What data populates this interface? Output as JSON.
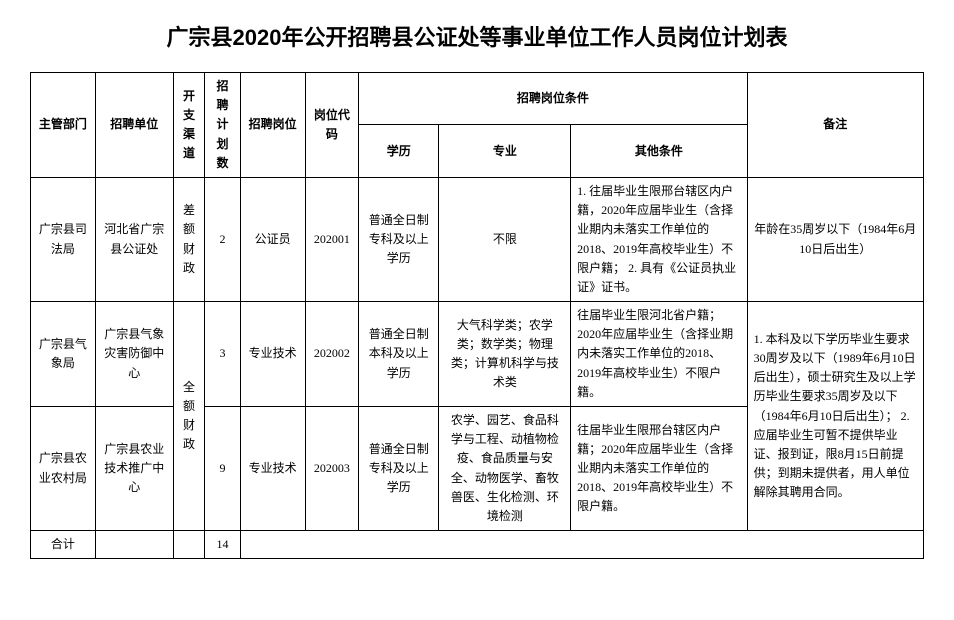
{
  "title": "广宗县2020年公开招聘县公证处等事业单位工作人员岗位计划表",
  "headers": {
    "dept": "主管部门",
    "unit": "招聘单位",
    "channel": "开支渠道",
    "plan": "招聘计划数",
    "post": "招聘岗位",
    "code": "岗位代码",
    "cond": "招聘岗位条件",
    "edu": "学历",
    "major": "专业",
    "other": "其他条件",
    "note": "备注"
  },
  "rows": [
    {
      "dept": "广宗县司法局",
      "unit": "河北省广宗县公证处",
      "channel": "差额财政",
      "plan": "2",
      "post": "公证员",
      "code": "202001",
      "edu": "普通全日制专科及以上学历",
      "major": "不限",
      "other": "1. 往届毕业生限邢台辖区内户籍，2020年应届毕业生（含择业期内未落实工作单位的2018、2019年高校毕业生）不限户籍；\n2. 具有《公证员执业证》证书。",
      "note": "年龄在35周岁以下（1984年6月10日后出生）"
    },
    {
      "dept": "广宗县气象局",
      "unit": "广宗县气象灾害防御中心",
      "channel": "全额财政",
      "plan": "3",
      "post": "专业技术",
      "code": "202002",
      "edu": "普通全日制本科及以上学历",
      "major": "大气科学类；农学类；数学类；物理类；计算机科学与技术类",
      "other": "往届毕业生限河北省户籍；2020年应届毕业生（含择业期内未落实工作单位的2018、2019年高校毕业生）不限户籍。",
      "note": "1. 本科及以下学历毕业生要求30周岁及以下（1989年6月10日后出生），硕士研究生及以上学历毕业生要求35周岁及以下（1984年6月10日后出生）；\n2. 应届毕业生可暂不提供毕业证、报到证，限8月15日前提供；到期未提供者，用人单位解除其聘用合同。"
    },
    {
      "dept": "广宗县农业农村局",
      "unit": "广宗县农业技术推广中心",
      "plan": "9",
      "post": "专业技术",
      "code": "202003",
      "edu": "普通全日制专科及以上学历",
      "major": "农学、园艺、食品科学与工程、动植物检疫、食品质量与安全、动物医学、畜牧兽医、生化检测、环境检测",
      "other": "往届毕业生限邢台辖区内户籍；2020年应届毕业生（含择业期内未落实工作单位的2018、2019年高校毕业生）不限户籍。"
    }
  ],
  "total": {
    "label": "合计",
    "value": "14"
  }
}
